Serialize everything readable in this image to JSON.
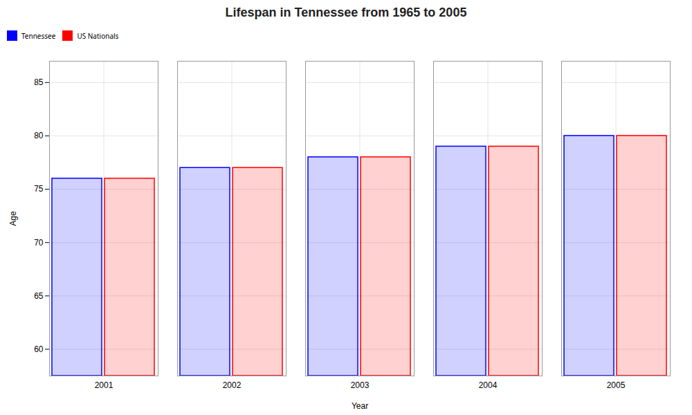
{
  "chart_data": {
    "type": "bar",
    "title": "Lifespan in Tennessee from 1965 to 2005",
    "xlabel": "Year",
    "ylabel": "Age",
    "categories": [
      "2001",
      "2002",
      "2003",
      "2004",
      "2005"
    ],
    "series": [
      {
        "name": "Tennessee",
        "color": "#0000ff",
        "values": [
          76,
          77,
          78,
          79,
          80
        ]
      },
      {
        "name": "US Nationals",
        "color": "#ff0000",
        "values": [
          76,
          77,
          78,
          79,
          80
        ]
      }
    ],
    "ylim": [
      57.5,
      87
    ],
    "yticks": [
      60,
      65,
      70,
      75,
      80,
      85
    ],
    "grid": true,
    "legend": "top"
  }
}
